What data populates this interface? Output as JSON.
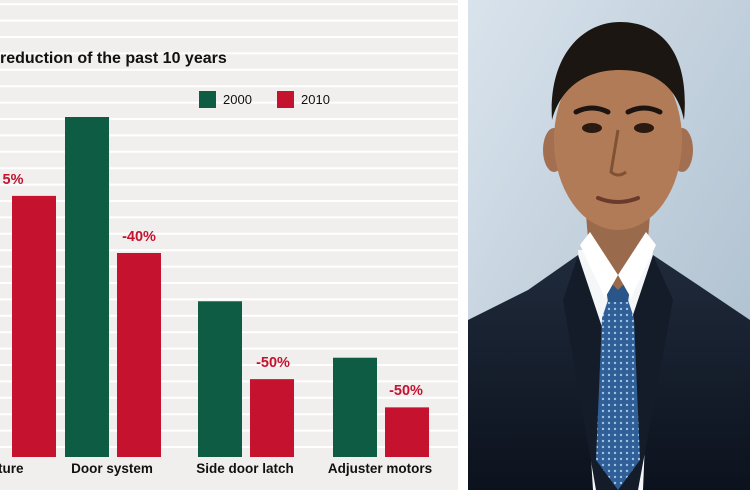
{
  "colors": {
    "series_2000": "#0f5c45",
    "series_2010": "#c4122f",
    "panel_bg": "#f1efee",
    "grid": "#ffffff"
  },
  "chart_data": {
    "type": "bar",
    "title": "reduction of the past 10 years",
    "categories": [
      "cture",
      "Door system",
      "Side door latch",
      "Adjuster motors"
    ],
    "series": [
      {
        "name": "2000",
        "values": [
          null,
          100,
          45.8,
          29.2
        ]
      },
      {
        "name": "2010",
        "values": [
          76.8,
          60,
          22.9,
          14.6
        ]
      }
    ],
    "data_labels": [
      "5%",
      "-40%",
      "-50%",
      "-50%"
    ],
    "ylim": [
      0,
      110
    ],
    "grid": true,
    "legend": "top"
  },
  "photo": {
    "description_icon": "portrait-photo"
  }
}
